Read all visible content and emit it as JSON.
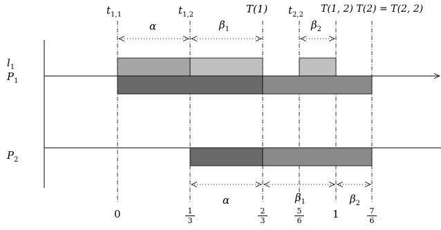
{
  "top_labels": {
    "t11": {
      "base": "t",
      "sub": "1,1"
    },
    "t12": {
      "base": "t",
      "sub": "1,2"
    },
    "T1": "T(1)",
    "t22": {
      "base": "t",
      "sub": "2,2"
    },
    "T12_T2": "T(1, 2) T(2) = T(2, 2)"
  },
  "top_intervals": {
    "alpha": "α",
    "beta1": {
      "base": "β",
      "sub": "1"
    },
    "beta2": {
      "base": "β",
      "sub": "2"
    }
  },
  "row_labels": {
    "l1": {
      "base": "l",
      "sub": "1"
    },
    "P1": {
      "base": "P",
      "sub": "1"
    },
    "P2": {
      "base": "P",
      "sub": "2"
    }
  },
  "bottom_intervals": {
    "alpha": "α",
    "beta1": {
      "base": "β",
      "sub": "1"
    },
    "beta2": {
      "base": "β",
      "sub": "2"
    }
  },
  "x_ticks": {
    "zero": "0",
    "one_third": {
      "num": "1",
      "den": "3"
    },
    "two_thirds": {
      "num": "2",
      "den": "3"
    },
    "five_sixths": {
      "num": "5",
      "den": "6"
    },
    "one": "1",
    "seven_sixths": {
      "num": "7",
      "den": "6"
    }
  },
  "colors": {
    "light": "#c0c0c0",
    "medium": "#a6a6a6",
    "grey": "#8a8a8a",
    "dark": "#6a6a6a",
    "line": "#000000"
  }
}
